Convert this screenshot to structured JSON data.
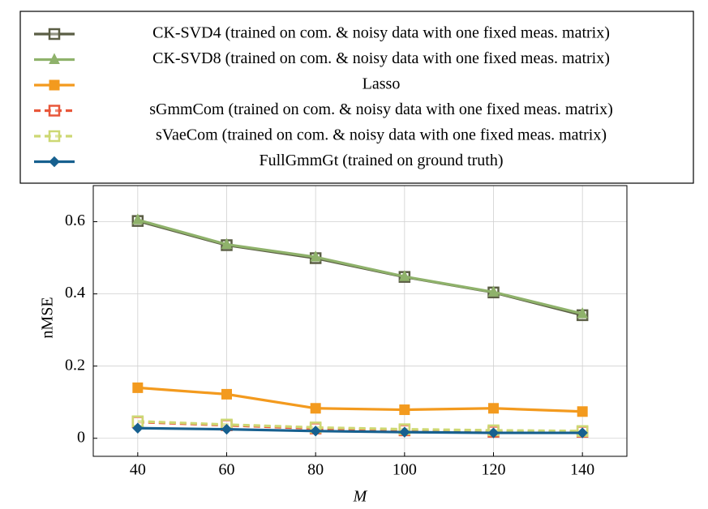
{
  "chart_data": {
    "type": "line",
    "x_label": "M",
    "y_label": "nMSE",
    "x": [
      40,
      60,
      80,
      100,
      120,
      140
    ],
    "xlim": [
      30,
      150
    ],
    "xticks": [
      40,
      60,
      80,
      100,
      120,
      140
    ],
    "ylim": [
      -0.05,
      0.7
    ],
    "yticks": [
      0,
      0.2,
      0.4,
      0.6
    ],
    "grid": true,
    "series": [
      {
        "name": "CK-SVD4 (trained on com. & noisy data with one fixed meas. matrix)",
        "color": "#5b5e45",
        "marker": "square-open",
        "values": [
          0.602,
          0.535,
          0.499,
          0.447,
          0.404,
          0.341
        ]
      },
      {
        "name": "CK-SVD8 (trained on com. & noisy data with one fixed meas. matrix)",
        "color": "#8fb26b",
        "marker": "triangle",
        "values": [
          0.605,
          0.537,
          0.502,
          0.448,
          0.405,
          0.345
        ]
      },
      {
        "name": "Lasso",
        "color": "#f39a1e",
        "marker": "square",
        "values": [
          0.14,
          0.122,
          0.083,
          0.079,
          0.083,
          0.074
        ]
      },
      {
        "name": "sGmmCom (trained on com. & noisy data with one fixed meas. matrix)",
        "color": "#e8573a",
        "marker": "square-open",
        "dash": true,
        "values": [
          0.045,
          0.036,
          0.027,
          0.022,
          0.018,
          0.018
        ]
      },
      {
        "name": "sVaeCom (trained on com. & noisy data with one fixed meas. matrix)",
        "color": "#cdd873",
        "marker": "square-open",
        "dash": true,
        "values": [
          0.047,
          0.038,
          0.03,
          0.025,
          0.022,
          0.02
        ]
      },
      {
        "name": "FullGmmGt (trained on ground truth)",
        "color": "#17608f",
        "marker": "diamond",
        "values": [
          0.028,
          0.025,
          0.02,
          0.017,
          0.015,
          0.015
        ]
      }
    ]
  }
}
